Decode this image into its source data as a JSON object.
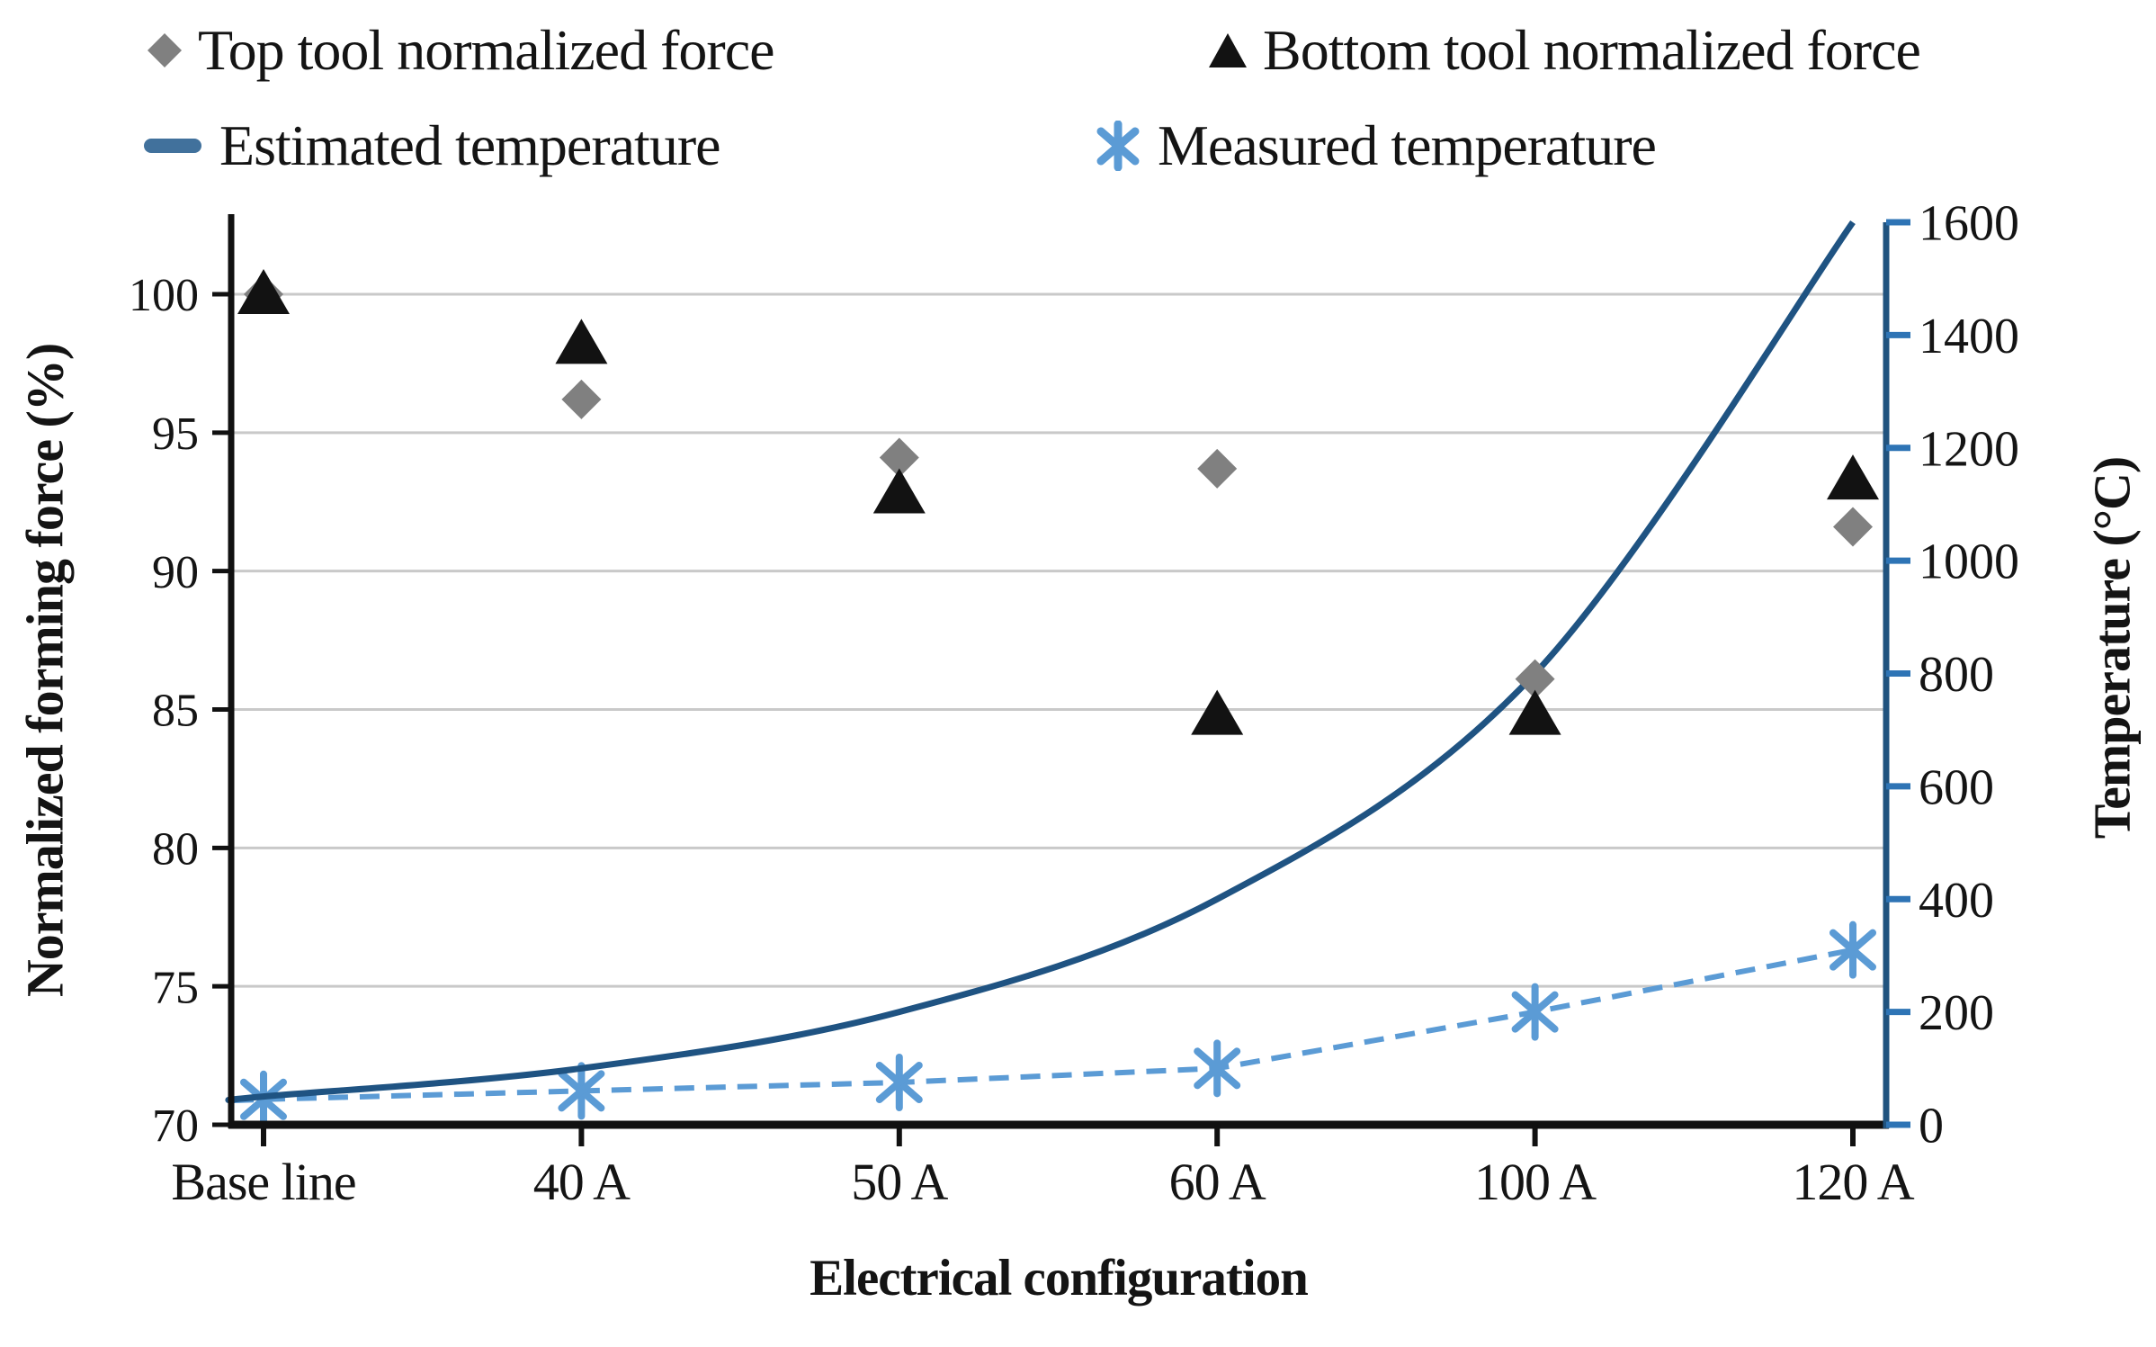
{
  "legend": {
    "items": [
      {
        "label": "Top tool normalized force",
        "marker": "diamond",
        "color": "#808080"
      },
      {
        "label": "Bottom tool normalized force",
        "marker": "triangle",
        "color": "#121212"
      },
      {
        "label": "Estimated temperature",
        "marker": "line",
        "color": "#41719C"
      },
      {
        "label": "Measured temperature",
        "marker": "asterisk",
        "color": "#5B9BD5"
      }
    ]
  },
  "chart_data": {
    "type": "line",
    "categories": [
      "Base line",
      "40 A",
      "50 A",
      "60 A",
      "100 A",
      "120 A"
    ],
    "x_axis_title": "Electrical configuration",
    "y_left": {
      "title": "Normalized forming force (%)",
      "min": 70,
      "max": 100,
      "tick_step": 5,
      "ticks": [
        70,
        75,
        80,
        85,
        90,
        95,
        100
      ]
    },
    "y_right": {
      "title": "Temperature (°C)",
      "min": 0,
      "max": 1600,
      "tick_step": 200,
      "ticks": [
        0,
        200,
        400,
        600,
        800,
        1000,
        1200,
        1400,
        1600
      ]
    },
    "series": [
      {
        "name": "Top tool normalized force",
        "axis": "left",
        "style": "scatter-diamond",
        "color": "#808080",
        "values": [
          100,
          96.2,
          94.1,
          93.7,
          86.1,
          91.6
        ]
      },
      {
        "name": "Bottom tool normalized force",
        "axis": "left",
        "style": "scatter-triangle",
        "color": "#121212",
        "values": [
          100,
          98.2,
          92.8,
          84.8,
          84.8,
          93.3
        ]
      },
      {
        "name": "Estimated temperature",
        "axis": "right",
        "style": "smooth-line",
        "color": "#1F5382",
        "values": [
          50,
          100,
          200,
          400,
          800,
          1600
        ]
      },
      {
        "name": "Measured temperature",
        "axis": "right",
        "style": "dashed-asterisk",
        "color": "#5B9BD5",
        "values": [
          45,
          60,
          75,
          100,
          200,
          310
        ]
      }
    ],
    "grid": "horizontal",
    "legend_position": "top",
    "colors": {
      "gridline": "#C9C9C9",
      "left_axis": "#111111",
      "bottom_axis": "#111111",
      "right_axis": "#20537F",
      "right_axis_ticks": "#2E74B5"
    }
  }
}
